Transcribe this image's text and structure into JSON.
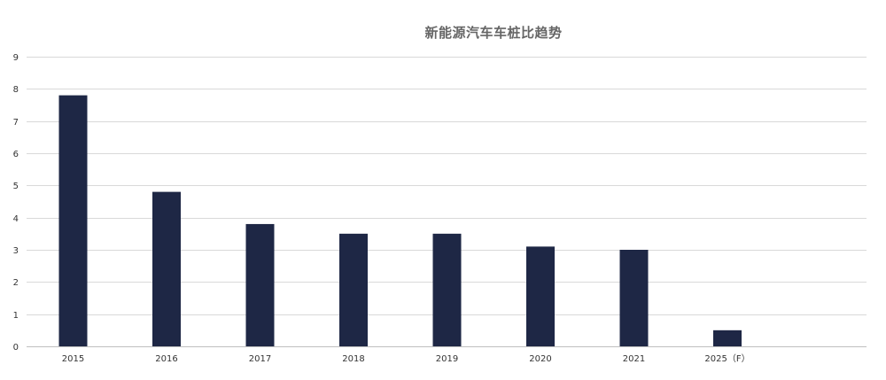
{
  "chart_data": {
    "type": "bar",
    "title": "新能源汽车车桩比趋势",
    "xlabel": "",
    "ylabel": "",
    "categories": [
      "2015",
      "2016",
      "2017",
      "2018",
      "2019",
      "2020",
      "2021",
      "2025（F）"
    ],
    "values": [
      7.8,
      4.8,
      3.8,
      3.5,
      3.5,
      3.1,
      3.0,
      0.5
    ],
    "ylim": [
      0,
      9
    ],
    "yticks": [
      "0",
      "1",
      "2",
      "3",
      "4",
      "5",
      "6",
      "7",
      "8",
      "9"
    ],
    "grid": true,
    "legend": "none",
    "colors": {
      "bar": "#1e2745",
      "grid": "#d9d9d9",
      "title": "#666666"
    }
  }
}
